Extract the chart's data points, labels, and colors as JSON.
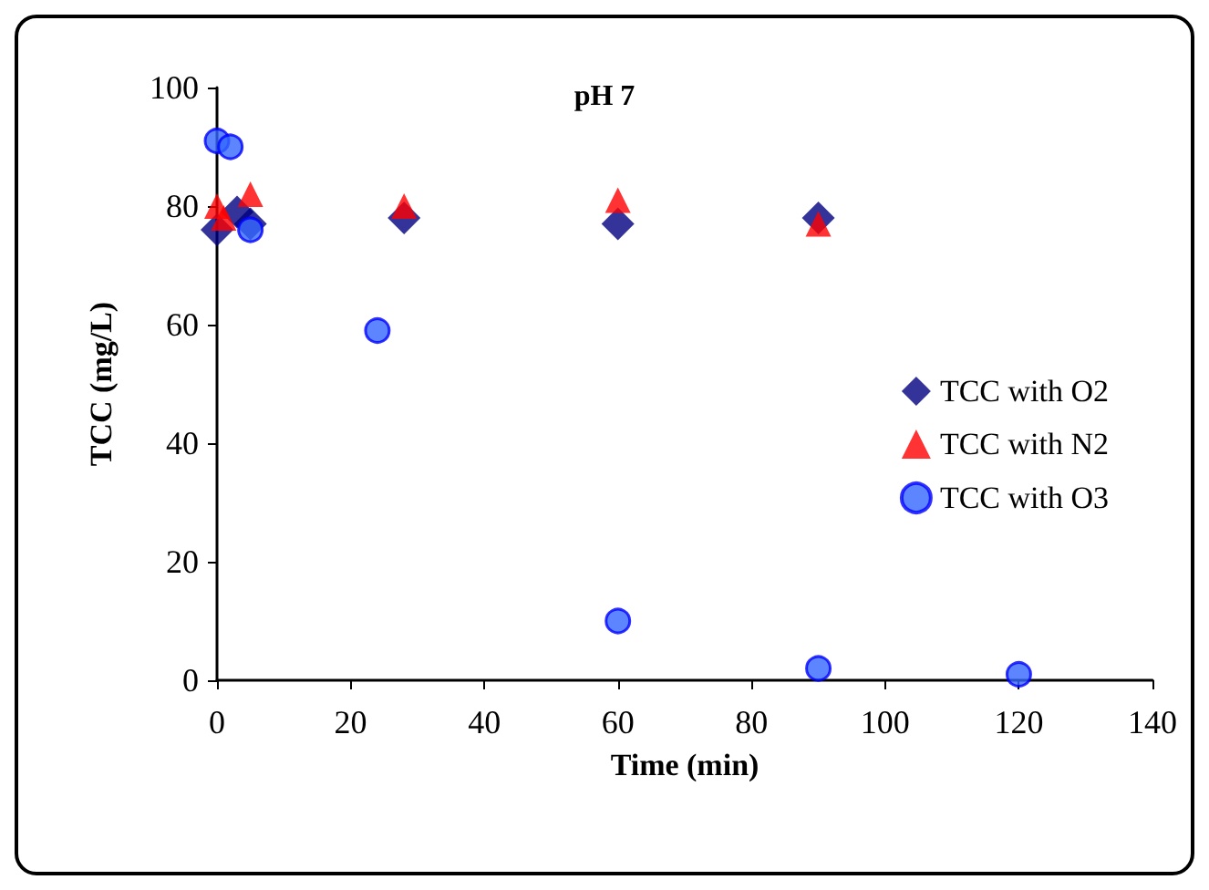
{
  "chart_data": {
    "type": "scatter",
    "title": "pH 7",
    "xlabel": "Time (min)",
    "ylabel": "TCC (mg/L)",
    "xlim": [
      0,
      140
    ],
    "xticks": [
      0,
      20,
      40,
      60,
      80,
      100,
      120,
      140
    ],
    "ylim": [
      0,
      100
    ],
    "yticks": [
      0,
      20,
      40,
      60,
      80,
      100
    ],
    "grid": false,
    "legend": "right",
    "series": [
      {
        "name": "TCC with O2",
        "color": "#000080",
        "marker": "diamond",
        "x": [
          0,
          3,
          5,
          28,
          60,
          90
        ],
        "values": [
          76,
          79,
          77,
          78,
          77,
          78
        ]
      },
      {
        "name": "TCC with N2",
        "color": "#ff0000",
        "marker": "triangle",
        "x": [
          0,
          1,
          5,
          28,
          60,
          90
        ],
        "values": [
          80,
          78,
          82,
          80,
          81,
          77
        ]
      },
      {
        "name": "TCC with O3",
        "color": "#3366ff",
        "marker": "circle",
        "x": [
          0,
          2,
          5,
          24,
          60,
          90,
          120
        ],
        "values": [
          91,
          90,
          76,
          59,
          10,
          2,
          1
        ]
      }
    ]
  }
}
